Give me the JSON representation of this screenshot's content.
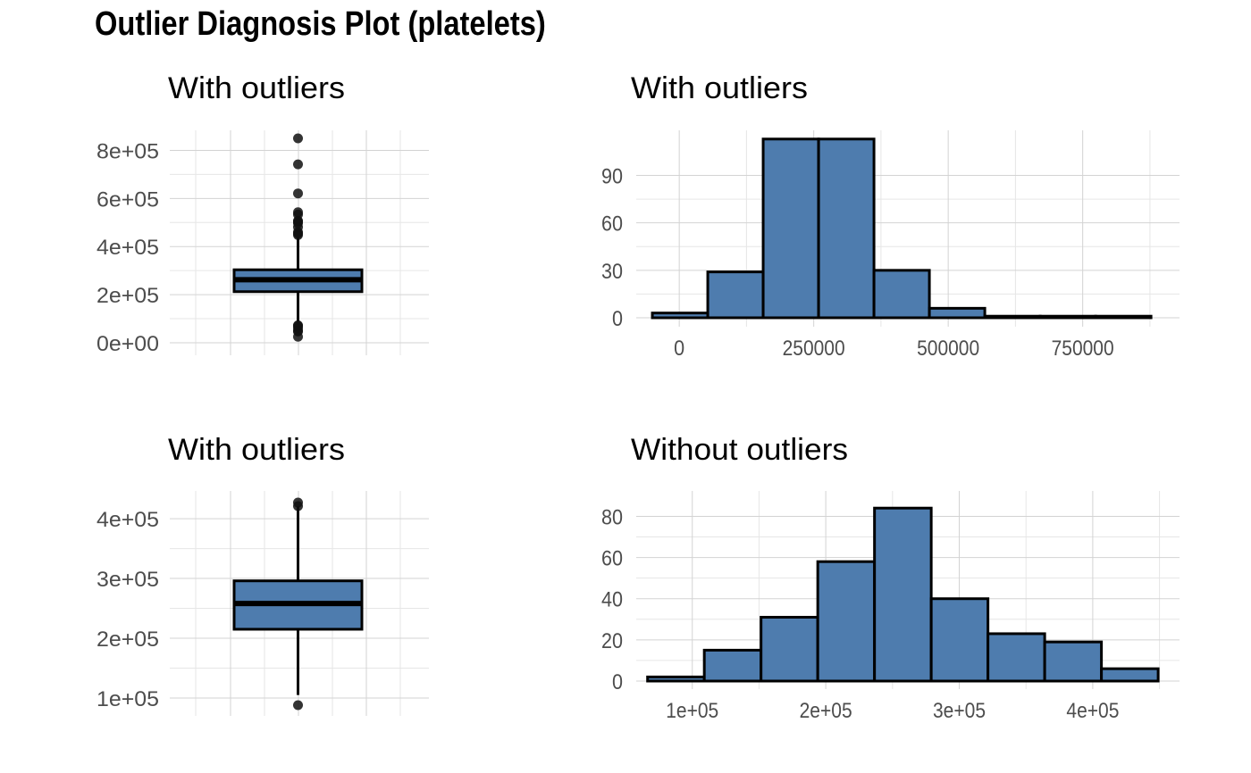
{
  "title": "Outlier Diagnosis Plot (platelets)",
  "colors": {
    "fill": "#4E7CAE",
    "outline": "#000000",
    "grid_major": "#D3D3D3",
    "grid_minor": "#E6E6E6",
    "tick_text": "#4D4D4D"
  },
  "chart_data": [
    {
      "type": "boxplot",
      "title": "With outliers",
      "ylim": [
        0,
        850000
      ],
      "yticks": [
        0,
        200000,
        400000,
        600000,
        800000
      ],
      "ytick_labels": [
        "0e+00",
        "2e+05",
        "4e+05",
        "6e+05",
        "8e+05"
      ],
      "box": {
        "lower_whisker": 76000,
        "q1": 212500,
        "median": 262000,
        "q3": 303500,
        "upper_whisker": 440000
      },
      "outliers": [
        25100,
        47000,
        51000,
        62000,
        70000,
        73000,
        448000,
        454000,
        460000,
        481000,
        497000,
        504000,
        507000,
        533000,
        543000,
        621000,
        742000,
        850000
      ]
    },
    {
      "type": "histogram",
      "title": "With outliers",
      "xlim": [
        -80000,
        930000
      ],
      "ylim": [
        0,
        114
      ],
      "xticks": [
        0,
        250000,
        500000,
        750000
      ],
      "xtick_labels": [
        "0",
        "250000",
        "500000",
        "750000"
      ],
      "yticks": [
        0,
        30,
        60,
        90
      ],
      "ytick_labels": [
        "0",
        "30",
        "60",
        "90"
      ],
      "bins": [
        {
          "x0": -50000,
          "x1": 53000,
          "count": 3
        },
        {
          "x0": 53000,
          "x1": 156000,
          "count": 29
        },
        {
          "x0": 156000,
          "x1": 259000,
          "count": 113
        },
        {
          "x0": 259000,
          "x1": 362000,
          "count": 113
        },
        {
          "x0": 362000,
          "x1": 465000,
          "count": 30
        },
        {
          "x0": 465000,
          "x1": 568000,
          "count": 6
        },
        {
          "x0": 568000,
          "x1": 671000,
          "count": 1
        },
        {
          "x0": 671000,
          "x1": 774000,
          "count": 1
        },
        {
          "x0": 774000,
          "x1": 877000,
          "count": 1
        }
      ]
    },
    {
      "type": "boxplot",
      "title": "With outliers",
      "ylim": [
        88000,
        430000
      ],
      "yticks": [
        100000,
        200000,
        300000,
        400000
      ],
      "ytick_labels": [
        "1e+05",
        "2e+05",
        "3e+05",
        "4e+05"
      ],
      "box": {
        "lower_whisker": 105000,
        "q1": 215000,
        "median": 258000,
        "q3": 296000,
        "upper_whisker": 421000
      },
      "outliers": [
        88000,
        421000,
        427000
      ]
    },
    {
      "type": "histogram",
      "title": "Without outliers",
      "xlim": [
        58000,
        465000
      ],
      "ylim": [
        0,
        88
      ],
      "xticks": [
        100000,
        200000,
        300000,
        400000
      ],
      "xtick_labels": [
        "1e+05",
        "2e+05",
        "3e+05",
        "4e+05"
      ],
      "yticks": [
        0,
        20,
        40,
        60,
        80
      ],
      "ytick_labels": [
        "0",
        "20",
        "40",
        "60",
        "80"
      ],
      "bins": [
        {
          "x0": 66500,
          "x1": 109000,
          "count": 2
        },
        {
          "x0": 109000,
          "x1": 151500,
          "count": 15
        },
        {
          "x0": 151500,
          "x1": 194000,
          "count": 31
        },
        {
          "x0": 194000,
          "x1": 236500,
          "count": 58
        },
        {
          "x0": 236500,
          "x1": 279000,
          "count": 84
        },
        {
          "x0": 279000,
          "x1": 321500,
          "count": 40
        },
        {
          "x0": 321500,
          "x1": 364000,
          "count": 23
        },
        {
          "x0": 364000,
          "x1": 406500,
          "count": 19
        },
        {
          "x0": 406500,
          "x1": 449000,
          "count": 6
        }
      ]
    }
  ]
}
